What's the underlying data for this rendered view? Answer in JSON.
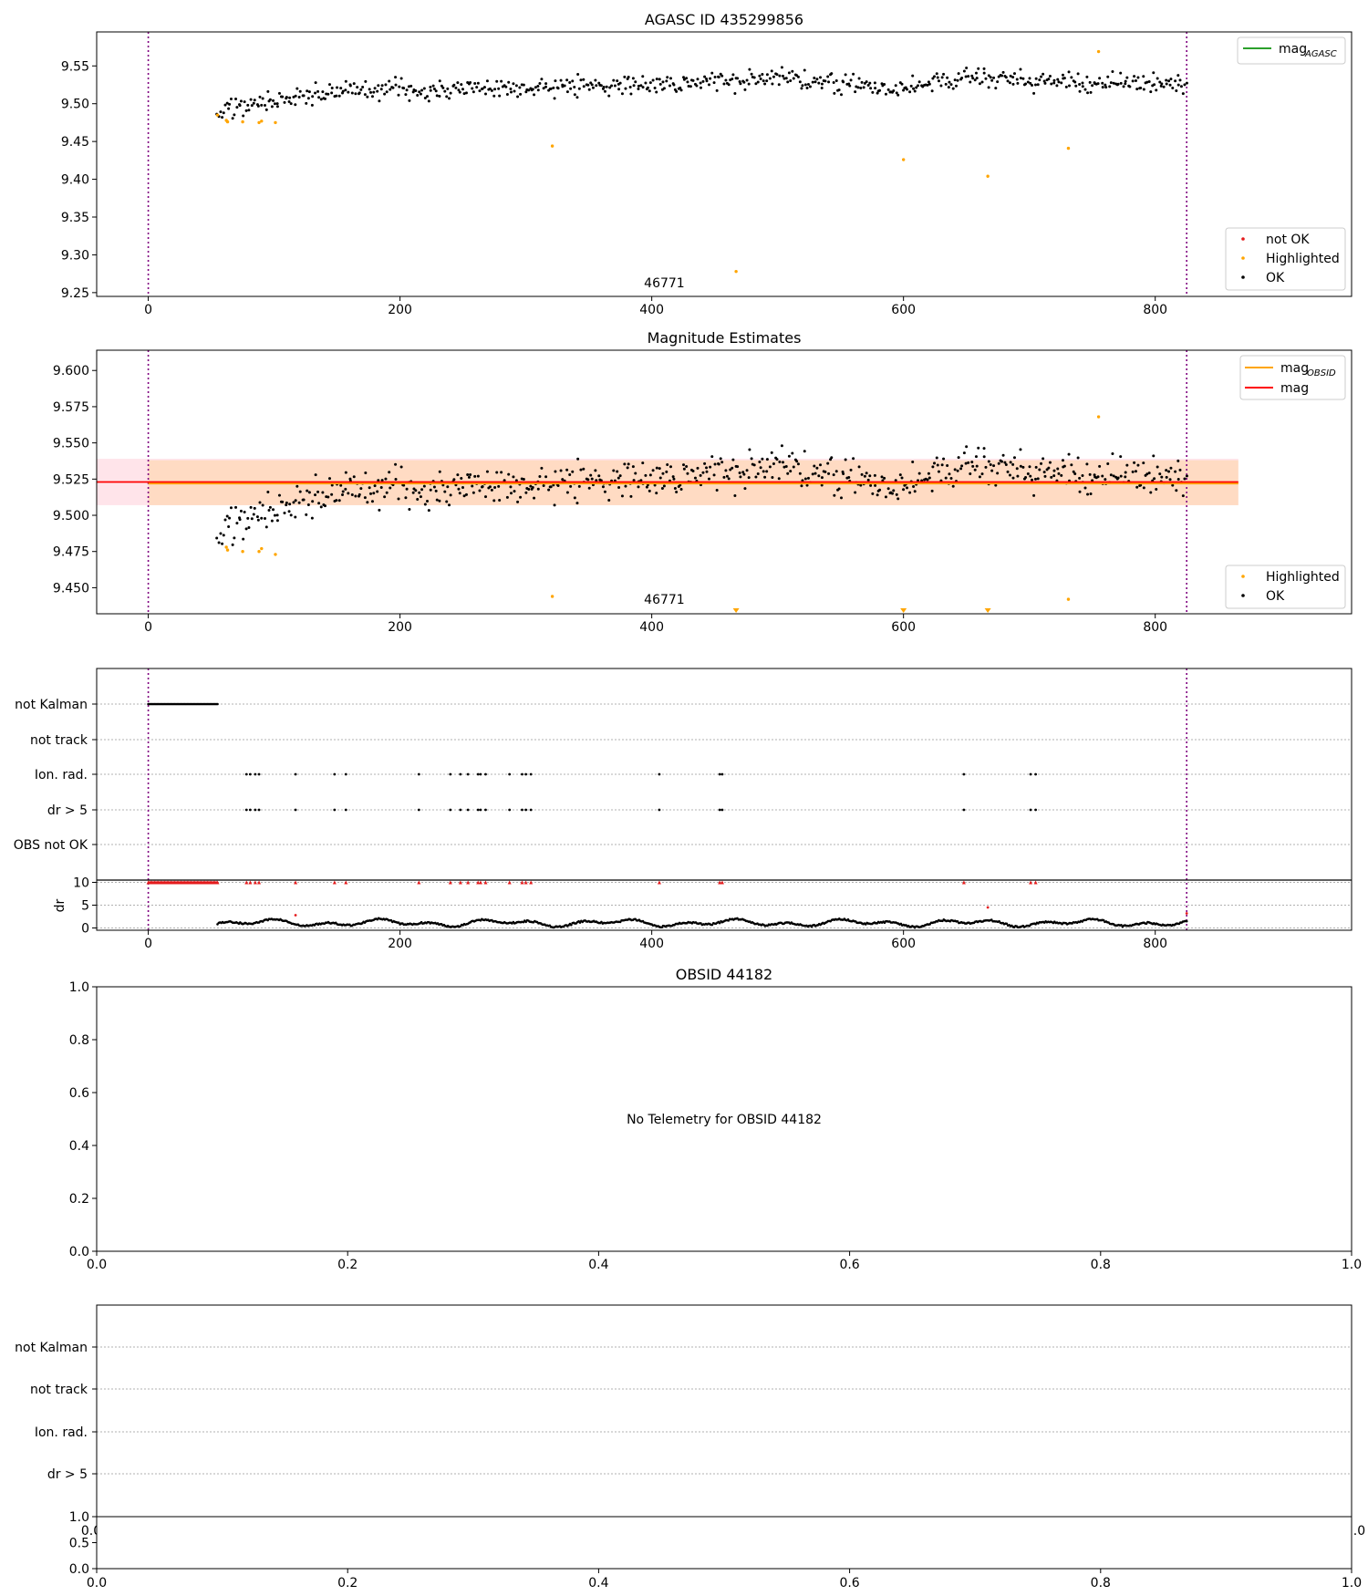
{
  "chart_data": [
    {
      "panel": "agasc",
      "type": "scatter",
      "title": "AGASC ID 435299856",
      "xlim": [
        -41,
        956
      ],
      "ylim": [
        9.245,
        9.595
      ],
      "xticks": [
        0,
        200,
        400,
        600,
        800
      ],
      "yticks": [
        9.25,
        9.3,
        9.35,
        9.4,
        9.45,
        9.5,
        9.55
      ],
      "ytick_labels": [
        "9.25",
        "9.30",
        "9.35",
        "9.40",
        "9.45",
        "9.50",
        "9.55"
      ],
      "vlines": [
        0,
        825
      ],
      "annotation": {
        "text": "46771",
        "x": 410,
        "y": 9.25
      },
      "legend_lines": [
        {
          "label": "mag",
          "sub": "AGASC",
          "color": "#2ca02c"
        }
      ],
      "legend_points": [
        {
          "label": "not OK",
          "color": "#e41a1c"
        },
        {
          "label": "Highlighted",
          "color": "#ffa500"
        },
        {
          "label": "OK",
          "color": "#000000"
        }
      ],
      "highlighted": [
        [
          55,
          9.485
        ],
        [
          62,
          9.478
        ],
        [
          63,
          9.476
        ],
        [
          75,
          9.476
        ],
        [
          88,
          9.475
        ],
        [
          90,
          9.477
        ],
        [
          101,
          9.475
        ],
        [
          321,
          9.444
        ],
        [
          467,
          9.278
        ],
        [
          600,
          9.426
        ],
        [
          667,
          9.404
        ],
        [
          731,
          9.441
        ],
        [
          755,
          9.569
        ]
      ],
      "ok_trend": [
        [
          55,
          9.49
        ],
        [
          80,
          9.497
        ],
        [
          120,
          9.508
        ],
        [
          160,
          9.518
        ],
        [
          250,
          9.52
        ],
        [
          400,
          9.525
        ],
        [
          500,
          9.535
        ],
        [
          600,
          9.52
        ],
        [
          650,
          9.535
        ],
        [
          700,
          9.528
        ],
        [
          750,
          9.528
        ],
        [
          825,
          9.525
        ]
      ],
      "ok_spread": 0.011,
      "ok_range": [
        55,
        825
      ],
      "ok_count": 640,
      "ok_seed": 11
    },
    {
      "panel": "mag",
      "type": "scatter",
      "title": "Magnitude Estimates",
      "xlim": [
        -41,
        956
      ],
      "ylim": [
        9.432,
        9.614
      ],
      "xticks": [
        0,
        200,
        400,
        600,
        800
      ],
      "yticks": [
        9.45,
        9.475,
        9.5,
        9.525,
        9.55,
        9.575,
        9.6
      ],
      "ytick_labels": [
        "9.450",
        "9.475",
        "9.500",
        "9.525",
        "9.550",
        "9.575",
        "9.600"
      ],
      "vlines": [
        0,
        825
      ],
      "annotation": {
        "text": "46771",
        "x": 410,
        "y": 9.432
      },
      "mag_line": {
        "value": 9.523,
        "band": [
          9.507,
          9.539
        ],
        "color": "#ff0000",
        "band_color": "#ffe4ea",
        "x_end": 866
      },
      "obsid_line": {
        "value": 9.522,
        "band": [
          9.507,
          9.538
        ],
        "color": "#ffa500",
        "band_color": "#ffd9bf",
        "x_range": [
          0,
          866
        ]
      },
      "legend_lines": [
        {
          "label": "mag",
          "sub": "OBSID",
          "color": "#ffa500"
        },
        {
          "label": "mag",
          "sub": "",
          "color": "#ff0000"
        }
      ],
      "legend_points": [
        {
          "label": "Highlighted",
          "color": "#ffa500"
        },
        {
          "label": "OK",
          "color": "#000000"
        }
      ],
      "highlighted": [
        [
          62,
          9.478
        ],
        [
          63,
          9.476
        ],
        [
          75,
          9.475
        ],
        [
          88,
          9.475
        ],
        [
          90,
          9.477
        ],
        [
          101,
          9.473
        ],
        [
          321,
          9.444
        ],
        [
          731,
          9.442
        ],
        [
          755,
          9.568
        ]
      ],
      "highlighted_clipped": [
        467,
        600,
        667
      ],
      "ok_trend": [
        [
          55,
          9.488
        ],
        [
          80,
          9.497
        ],
        [
          120,
          9.508
        ],
        [
          160,
          9.518
        ],
        [
          250,
          9.52
        ],
        [
          400,
          9.525
        ],
        [
          500,
          9.535
        ],
        [
          600,
          9.52
        ],
        [
          650,
          9.535
        ],
        [
          700,
          9.528
        ],
        [
          750,
          9.528
        ],
        [
          825,
          9.525
        ]
      ],
      "ok_spread": 0.011,
      "ok_range": [
        55,
        825
      ],
      "ok_count": 640,
      "ok_seed": 11
    },
    {
      "panel": "flags",
      "type": "scatter",
      "xlim": [
        -41,
        956
      ],
      "xticks": [
        0,
        200,
        400,
        600,
        800
      ],
      "vlines": [
        0,
        825
      ],
      "rows": [
        "not Kalman",
        "not track",
        "Ion. rad.",
        "dr > 5",
        "OBS not OK"
      ],
      "not_kalman_range": [
        0,
        55
      ],
      "event_times": [
        78,
        81,
        85,
        88,
        117,
        148,
        157,
        215,
        240,
        248,
        254,
        262,
        264,
        268,
        287,
        297,
        300,
        304,
        406,
        454,
        456,
        648,
        701,
        705
      ],
      "dr_ylim": [
        -0.5,
        10.5
      ],
      "dr_yticks": [
        0,
        5,
        10
      ],
      "dr_ylabel": "dr",
      "dr_outliers": [
        [
          117,
          2.8
        ],
        [
          667,
          4.5
        ],
        [
          825,
          3.2
        ]
      ],
      "dr_range": [
        55,
        825
      ]
    },
    {
      "panel": "empty",
      "type": "scatter",
      "title": "OBSID 44182",
      "xlim": [
        0,
        1
      ],
      "ylim": [
        0,
        1
      ],
      "xticks": [
        0,
        0.2,
        0.4,
        0.6,
        0.8,
        1.0
      ],
      "xtick_labels": [
        "0.0",
        "0.2",
        "0.4",
        "0.6",
        "0.8",
        "1.0"
      ],
      "yticks": [
        0,
        0.2,
        0.4,
        0.6,
        0.8,
        1.0
      ],
      "ytick_labels": [
        "0.0",
        "0.2",
        "0.4",
        "0.6",
        "0.8",
        "1.0"
      ],
      "message": "No Telemetry for OBSID 44182"
    },
    {
      "panel": "flags_empty",
      "type": "scatter",
      "rows": [
        "not Kalman",
        "not track",
        "Ion. rad.",
        "dr > 5"
      ],
      "xlim": [
        0,
        1
      ],
      "xticks": [
        0,
        0.2,
        0.4,
        0.6,
        0.8,
        1.0
      ],
      "xtick_labels": [
        "0.0",
        "0.2",
        "0.4",
        "0.6",
        "0.8",
        "1.0"
      ],
      "overlap_labels": [
        "0.0",
        "1.0"
      ],
      "sub_yticks": [
        0,
        0.5,
        1.0
      ],
      "sub_ytick_labels": [
        "0.0",
        "0.5",
        "1.0"
      ]
    }
  ]
}
